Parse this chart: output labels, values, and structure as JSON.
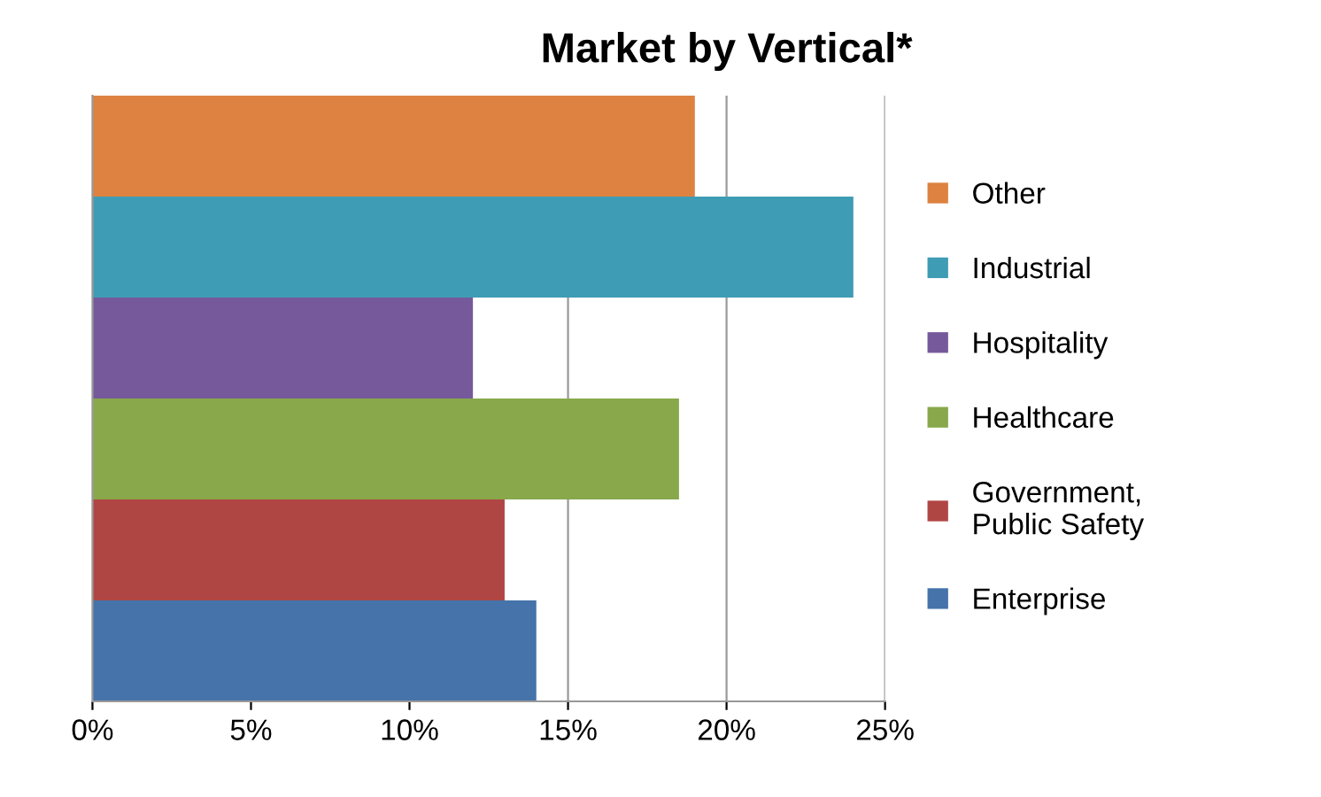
{
  "chart_data": {
    "type": "bar",
    "orientation": "horizontal",
    "title": "Market by Vertical*",
    "categories": [
      null,
      null,
      null,
      null,
      null,
      null
    ],
    "series": [
      {
        "name": "Other",
        "color": "#dd8241",
        "values": [
          19,
          null,
          null,
          null,
          null,
          null
        ]
      },
      {
        "name": "Industrial",
        "color": "#3f9cb5",
        "values": [
          null,
          24,
          null,
          null,
          null,
          null
        ]
      },
      {
        "name": "Hospitality",
        "color": "#76599a",
        "values": [
          null,
          null,
          12,
          null,
          null,
          null
        ]
      },
      {
        "name": "Healthcare",
        "color": "#88a84b",
        "values": [
          null,
          null,
          null,
          18.5,
          null,
          null
        ]
      },
      {
        "name": "Government,\nPublic Safety",
        "color": "#b04644",
        "values": [
          null,
          null,
          null,
          null,
          13,
          null
        ]
      },
      {
        "name": "Enterprise",
        "color": "#4573aa",
        "values": [
          null,
          null,
          null,
          null,
          null,
          14
        ]
      }
    ],
    "xlim": [
      0,
      25
    ],
    "xticks": [
      {
        "value": 0,
        "label": "0%"
      },
      {
        "value": 5,
        "label": "5%"
      },
      {
        "value": 10,
        "label": "10%"
      },
      {
        "value": 15,
        "label": "15%"
      },
      {
        "value": 20,
        "label": "20%"
      },
      {
        "value": 25,
        "label": "25%"
      }
    ],
    "grid": "x",
    "legend": "right",
    "tick_labels": "x"
  }
}
